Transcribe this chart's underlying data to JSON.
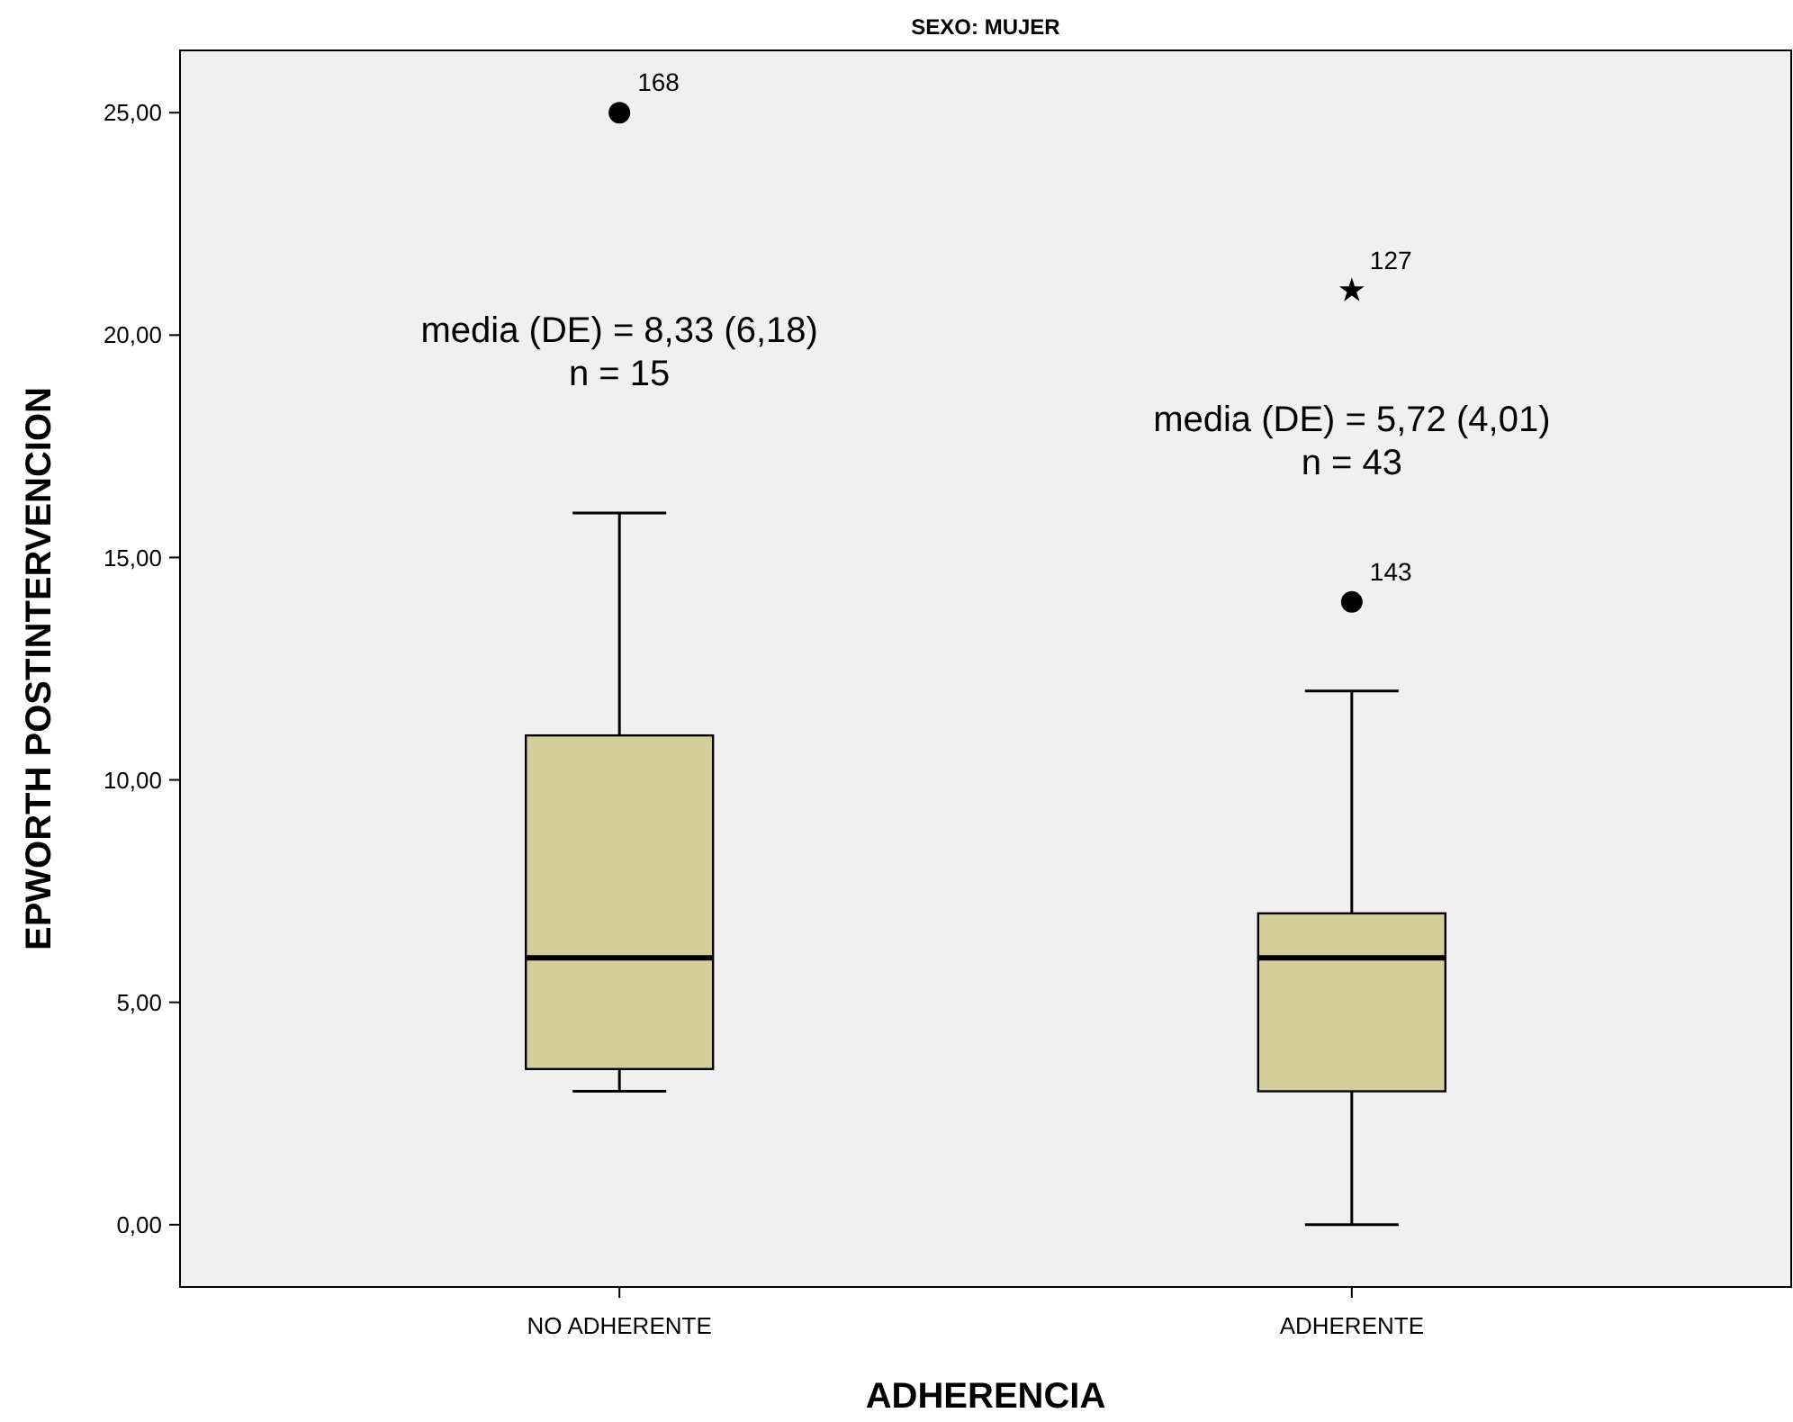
{
  "chart_data": {
    "type": "box",
    "title": "SEXO: MUJER",
    "xlabel": "ADHERENCIA",
    "ylabel": "EPWORTH POSTINTERVENCION",
    "categories": [
      "NO ADHERENTE",
      "ADHERENTE"
    ],
    "boxes": [
      {
        "low": 3,
        "q1": 3.5,
        "median": 6,
        "q3": 11,
        "high": 16,
        "outliers": [
          25
        ]
      },
      {
        "low": 0,
        "q1": 3,
        "median": 6,
        "q3": 7,
        "high": 12,
        "outliers": [
          14,
          21
        ]
      }
    ],
    "color": "#d4cf9a",
    "ylim": [
      -1.4,
      26.4
    ],
    "yticks": [
      {
        "value": 0,
        "label": "0,00"
      },
      {
        "value": 5,
        "label": "5,00"
      },
      {
        "value": 10,
        "label": "10,00"
      },
      {
        "value": 15,
        "label": "15,00"
      },
      {
        "value": 20,
        "label": "20,00"
      },
      {
        "value": 25,
        "label": "25,00"
      }
    ],
    "grid": false,
    "annotations": [
      "media (DE) = 8,33 (6,18)\nn = 15",
      "media (DE) = 5,72 (4,01)\nn = 43",
      "168",
      "143",
      "127"
    ]
  }
}
